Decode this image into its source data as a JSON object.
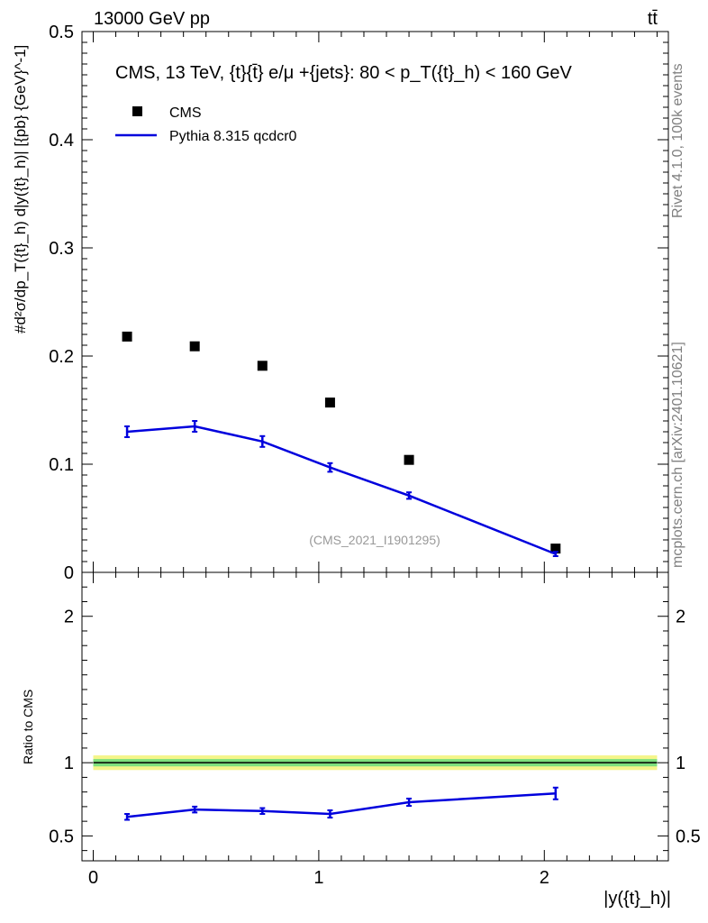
{
  "header": {
    "energy_label": "13000 GeV pp",
    "process_label": "tt̄"
  },
  "side_labels": {
    "rivet": "Rivet 4.1.0,  100k events",
    "mcplots": "mcplots.cern.ch [arXiv:2401.10621]"
  },
  "chart_data": {
    "type": "scatter",
    "title": "CMS, 13 TeV, {t}{t̄} e/μ +{jets}: 80 <  p_T({t}_h) < 160 GeV",
    "analysis_label": "(CMS_2021_I1901295)",
    "xlabel": "|y({t}_h)|",
    "ylabel": "#d²σ/dp_T({t}_h) d|y({t}_h)| [{pb} {GeV}^-1]",
    "ratio_ylabel": "Ratio to CMS",
    "xlim": [
      -0.05,
      2.55
    ],
    "ylim": [
      0,
      0.5
    ],
    "ratio_ylim": [
      0.33,
      2.3
    ],
    "x_ticks": [
      "0",
      "1",
      "2"
    ],
    "y_ticks": [
      "0",
      "0.1",
      "0.2",
      "0.3",
      "0.4",
      "0.5"
    ],
    "ratio_ticks": [
      "0.5",
      "1",
      "2"
    ],
    "legend": [
      "CMS",
      "Pythia 8.315 qcdcr0"
    ],
    "bins": [
      [
        0,
        0.3
      ],
      [
        0.3,
        0.6
      ],
      [
        0.6,
        0.9
      ],
      [
        0.9,
        1.2
      ],
      [
        1.2,
        1.6
      ],
      [
        1.6,
        2.5
      ]
    ],
    "x": [
      0.15,
      0.45,
      0.75,
      1.05,
      1.4,
      2.05
    ],
    "series": [
      {
        "name": "CMS",
        "values": [
          0.218,
          0.209,
          0.191,
          0.157,
          0.104,
          0.022
        ],
        "color": "#000000"
      },
      {
        "name": "Pythia 8.315 qcdcr0",
        "values": [
          0.13,
          0.135,
          0.121,
          0.097,
          0.071,
          0.017
        ],
        "errors": [
          0.005,
          0.005,
          0.005,
          0.004,
          0.003,
          0.002
        ],
        "color": "#0000dd"
      }
    ],
    "ratio": {
      "values": [
        0.63,
        0.68,
        0.67,
        0.65,
        0.73,
        0.79
      ],
      "errors": [
        0.02,
        0.02,
        0.02,
        0.025,
        0.025,
        0.04
      ]
    },
    "ratio_band": {
      "inner": [
        0.975,
        1.025
      ],
      "outer": [
        0.95,
        1.05
      ],
      "inner_color": "#7de07d",
      "outer_color": "#f5f58a"
    }
  }
}
